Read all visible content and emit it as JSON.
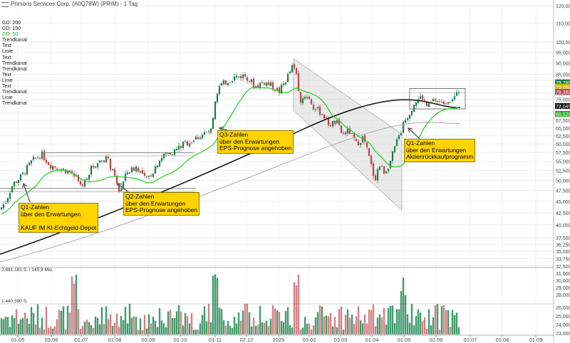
{
  "header": {
    "title": "Primoris Services Corp. (A0Q78W) (PRIM) - 1 Tag"
  },
  "legend": {
    "items": [
      "GD: 200",
      "GD: 150",
      "GD: 50",
      "Trendkanal",
      "Text",
      "Linie",
      "Text",
      "Trendkanal",
      "Trendkanal",
      "Text",
      "Linie",
      "Text",
      "Trendkanal",
      "Linie",
      "Trendkanal"
    ],
    "colors": [
      "#aaaaaa",
      "#222222",
      "#22cc22",
      "#555555",
      "#555555",
      "#555555",
      "#555555",
      "#555555",
      "#555555",
      "#555555",
      "#555555",
      "#555555",
      "#555555",
      "#555555",
      "#222222"
    ]
  },
  "colors": {
    "up": "#1e7a4a",
    "down": "#b8444e",
    "vol_up": "#3f9b6c",
    "vol_down": "#d47f86",
    "gd200": "#aaaaaa",
    "gd150": "#111111",
    "gd50": "#22cc22",
    "annotation": "#ffd400",
    "channel_fill": "#d8d8d8"
  },
  "annotations": [
    {
      "lines": [
        "Q1-Zahlen",
        "über den Erwartungen",
        "",
        "KAUF IM KI-Echtgeld-Depot"
      ]
    },
    {
      "lines": [
        "Q2-Zahlen",
        "über den Erwartungen",
        "EPS-Prognose angehoben"
      ]
    },
    {
      "lines": [
        "Q3-Zahlen",
        "über den Erwartungen",
        "EPS-Prognose angehoben"
      ]
    },
    {
      "lines": [
        "Q1-Zahlen",
        "über den Erwartungen",
        "Aktienrückkaufprogramm"
      ]
    }
  ],
  "chart_data": {
    "type": "candlestick",
    "x_ticks": [
      "01.05",
      "03.06",
      "01.07",
      "01.08",
      "03.09",
      "01.10",
      "01.11",
      "02.12",
      "2025",
      "03.02",
      "03.03",
      "01.04",
      "01.05",
      "02.06",
      "01.07",
      "01.08",
      "01.09"
    ],
    "y_ticks": [
      "120,000",
      "110,000",
      "100,000",
      "95,000",
      "90,000",
      "85,000",
      "82,500",
      "80,000",
      "77,500",
      "75,000",
      "72,500",
      "70,000",
      "67,500",
      "65,000",
      "62,500",
      "60,000",
      "57,500",
      "55,000",
      "52,500",
      "50,000",
      "47,500",
      "45,000",
      "42,500",
      "40,000",
      "37,500",
      "36,250",
      "35,000",
      "33,750",
      "32,500"
    ],
    "price_tags": [
      {
        "label": "79,780",
        "color": "#1e7a4a"
      },
      {
        "label": "79,080",
        "color": "#c8b400"
      },
      {
        "label": "78,390",
        "color": "#b8444e"
      },
      {
        "label": "72,045",
        "color": "#111111"
      },
      {
        "label": "68,520",
        "color": "#22aa22"
      }
    ],
    "volume": {
      "labels": [
        "2.881.181 S. / 145,9 Mio.",
        "1.440.590 S."
      ],
      "y_ticks": [
        "31,000",
        "30,000",
        "29,000",
        "28,000",
        "26,000",
        "25,000",
        "24,000",
        "23,000"
      ]
    },
    "key_prices": {
      "start_may_2024": 43.5,
      "high_jan_2025": 89.5,
      "low_apr_2025": 49,
      "last_jun_2025": 79.78
    }
  }
}
